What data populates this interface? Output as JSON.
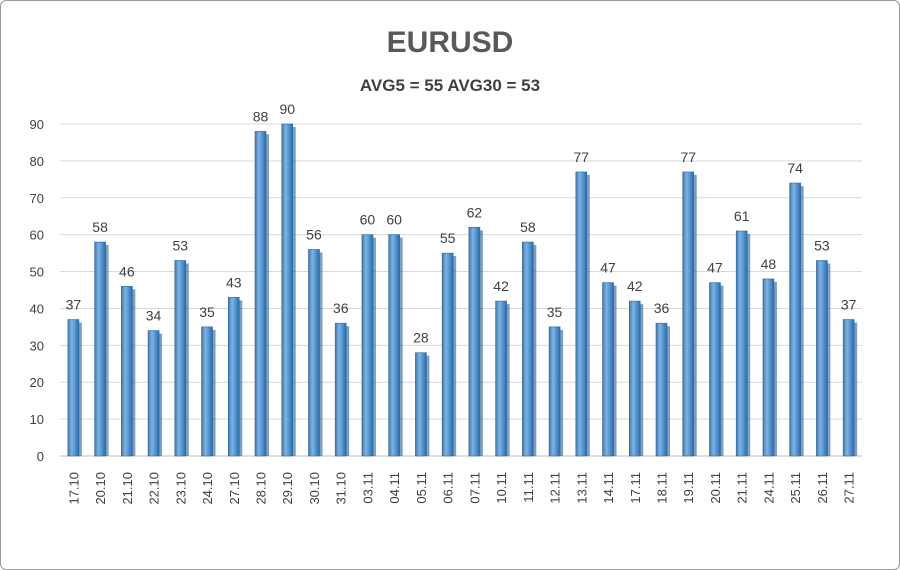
{
  "chart_data": {
    "type": "bar",
    "title": "EURUSD",
    "subtitle": "AVG5 = 55 AVG30 = 53",
    "xlabel": "",
    "ylabel": "",
    "ylim": [
      0,
      90
    ],
    "yticks": [
      0,
      10,
      20,
      30,
      40,
      50,
      60,
      70,
      80,
      90
    ],
    "grid": true,
    "legend": "none",
    "bar_color": "#5b9bd5",
    "categories": [
      "17.10",
      "20.10",
      "21.10",
      "22.10",
      "23.10",
      "24.10",
      "27.10",
      "28.10",
      "29.10",
      "30.10",
      "31.10",
      "03.11",
      "04.11",
      "05.11",
      "06.11",
      "07.11",
      "10.11",
      "11.11",
      "12.11",
      "13.11",
      "14.11",
      "17.11",
      "18.11",
      "19.11",
      "20.11",
      "21.11",
      "24.11",
      "25.11",
      "26.11",
      "27.11"
    ],
    "values": [
      37,
      58,
      46,
      34,
      53,
      35,
      43,
      88,
      90,
      56,
      36,
      60,
      60,
      28,
      55,
      62,
      42,
      58,
      35,
      77,
      47,
      42,
      36,
      77,
      47,
      61,
      48,
      74,
      53,
      37
    ]
  }
}
